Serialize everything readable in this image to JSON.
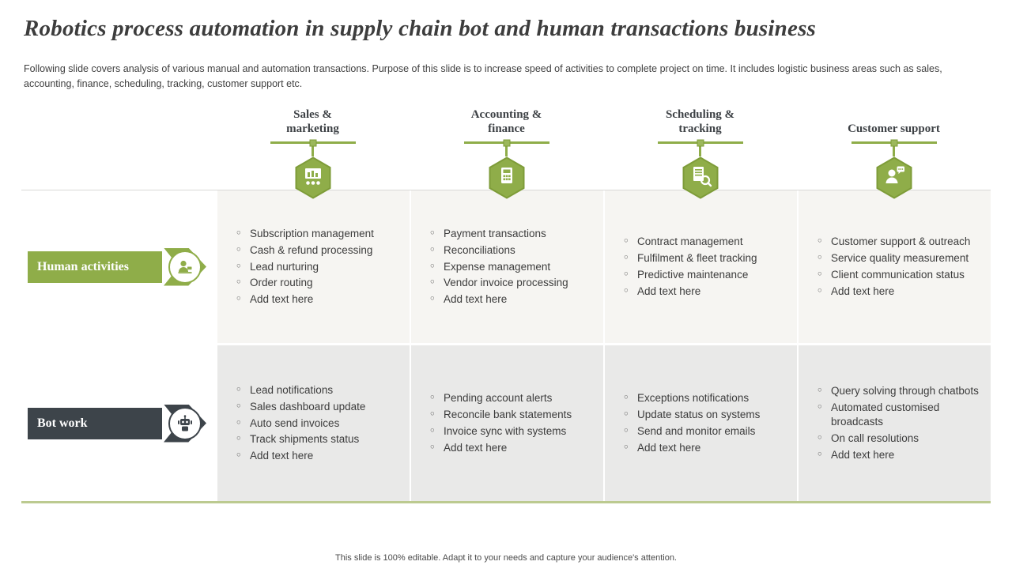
{
  "slide": {
    "title": "Robotics process automation in supply chain bot and human transactions business",
    "subtitle": "Following slide covers analysis of various manual and automation transactions. Purpose of this slide is to increase speed of activities to complete project on time. It includes logistic business areas such as sales, accounting, finance, scheduling, tracking, customer support etc.",
    "footer": "This slide is 100% editable.  Adapt it to your needs and capture your audience's attention."
  },
  "colors": {
    "accent_green": "#8fad49",
    "accent_green_dark": "#7e9c39",
    "dark_slate": "#3d444a",
    "row1_bg": "#f6f5f2",
    "row2_bg": "#e9e9e8"
  },
  "columns": [
    {
      "label": "Sales & marketing",
      "icon": "presentation-board-icon"
    },
    {
      "label": "Accounting & finance",
      "icon": "calculator-icon"
    },
    {
      "label": "Scheduling & tracking",
      "icon": "document-tracking-icon"
    },
    {
      "label": "Customer support",
      "icon": "support-person-icon"
    }
  ],
  "rows": [
    {
      "label": "Human activities",
      "icon": "human-icon",
      "cells": [
        [
          "Subscription management",
          "Cash & refund processing",
          "Lead nurturing",
          "Order routing",
          "Add text here"
        ],
        [
          "Payment transactions",
          "Reconciliations",
          "Expense management",
          "Vendor invoice processing",
          "Add text here"
        ],
        [
          "Contract management",
          "Fulfilment & fleet tracking",
          "Predictive maintenance",
          "Add text here"
        ],
        [
          "Customer support & outreach",
          "Service quality measurement",
          "Client communication status",
          "Add text here"
        ]
      ]
    },
    {
      "label": "Bot work",
      "icon": "robot-icon",
      "cells": [
        [
          "Lead notifications",
          "Sales dashboard update",
          "Auto send invoices",
          "Track shipments status",
          "Add text here"
        ],
        [
          "Pending account alerts",
          "Reconcile bank statements",
          "Invoice sync with systems",
          "Add text here"
        ],
        [
          "Exceptions notifications",
          "Update status on systems",
          "Send and monitor emails",
          "Add text here"
        ],
        [
          "Query solving through chatbots",
          "Automated customised broadcasts",
          "On call resolutions",
          "Add text here"
        ]
      ]
    }
  ]
}
